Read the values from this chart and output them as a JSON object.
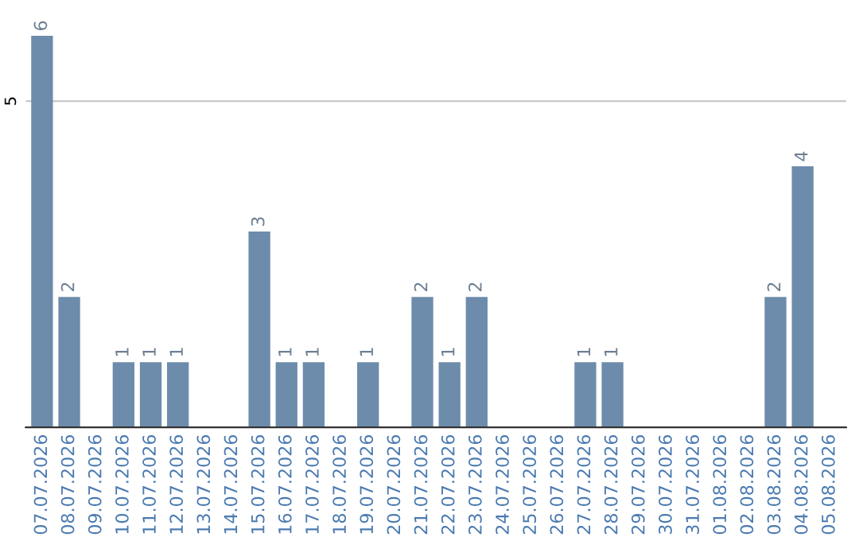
{
  "chart_data": {
    "type": "bar",
    "categories": [
      "07.07.2026",
      "08.07.2026",
      "09.07.2026",
      "10.07.2026",
      "11.07.2026",
      "12.07.2026",
      "13.07.2026",
      "14.07.2026",
      "15.07.2026",
      "16.07.2026",
      "17.07.2026",
      "18.07.2026",
      "19.07.2026",
      "20.07.2026",
      "21.07.2026",
      "22.07.2026",
      "23.07.2026",
      "24.07.2026",
      "25.07.2026",
      "26.07.2026",
      "27.07.2026",
      "28.07.2026",
      "29.07.2026",
      "30.07.2026",
      "31.07.2026",
      "01.08.2026",
      "02.08.2026",
      "03.08.2026",
      "04.08.2026",
      "05.08.2026"
    ],
    "values": [
      6,
      2,
      0,
      1,
      1,
      1,
      0,
      0,
      3,
      1,
      1,
      0,
      1,
      0,
      2,
      1,
      2,
      0,
      0,
      0,
      1,
      1,
      0,
      0,
      0,
      0,
      0,
      2,
      4,
      0
    ],
    "value_labels": [
      "6",
      "2",
      null,
      "1",
      "1",
      "1",
      null,
      null,
      "3",
      "1",
      "1",
      null,
      "1",
      null,
      "2",
      "1",
      "2",
      null,
      null,
      null,
      "1",
      "1",
      null,
      null,
      null,
      null,
      null,
      "2",
      "4",
      null
    ],
    "color": "#6d8cab",
    "ref_lines": [
      {
        "axis": "y",
        "value": 5,
        "label": "5",
        "color": "#c8c8c8"
      }
    ]
  }
}
